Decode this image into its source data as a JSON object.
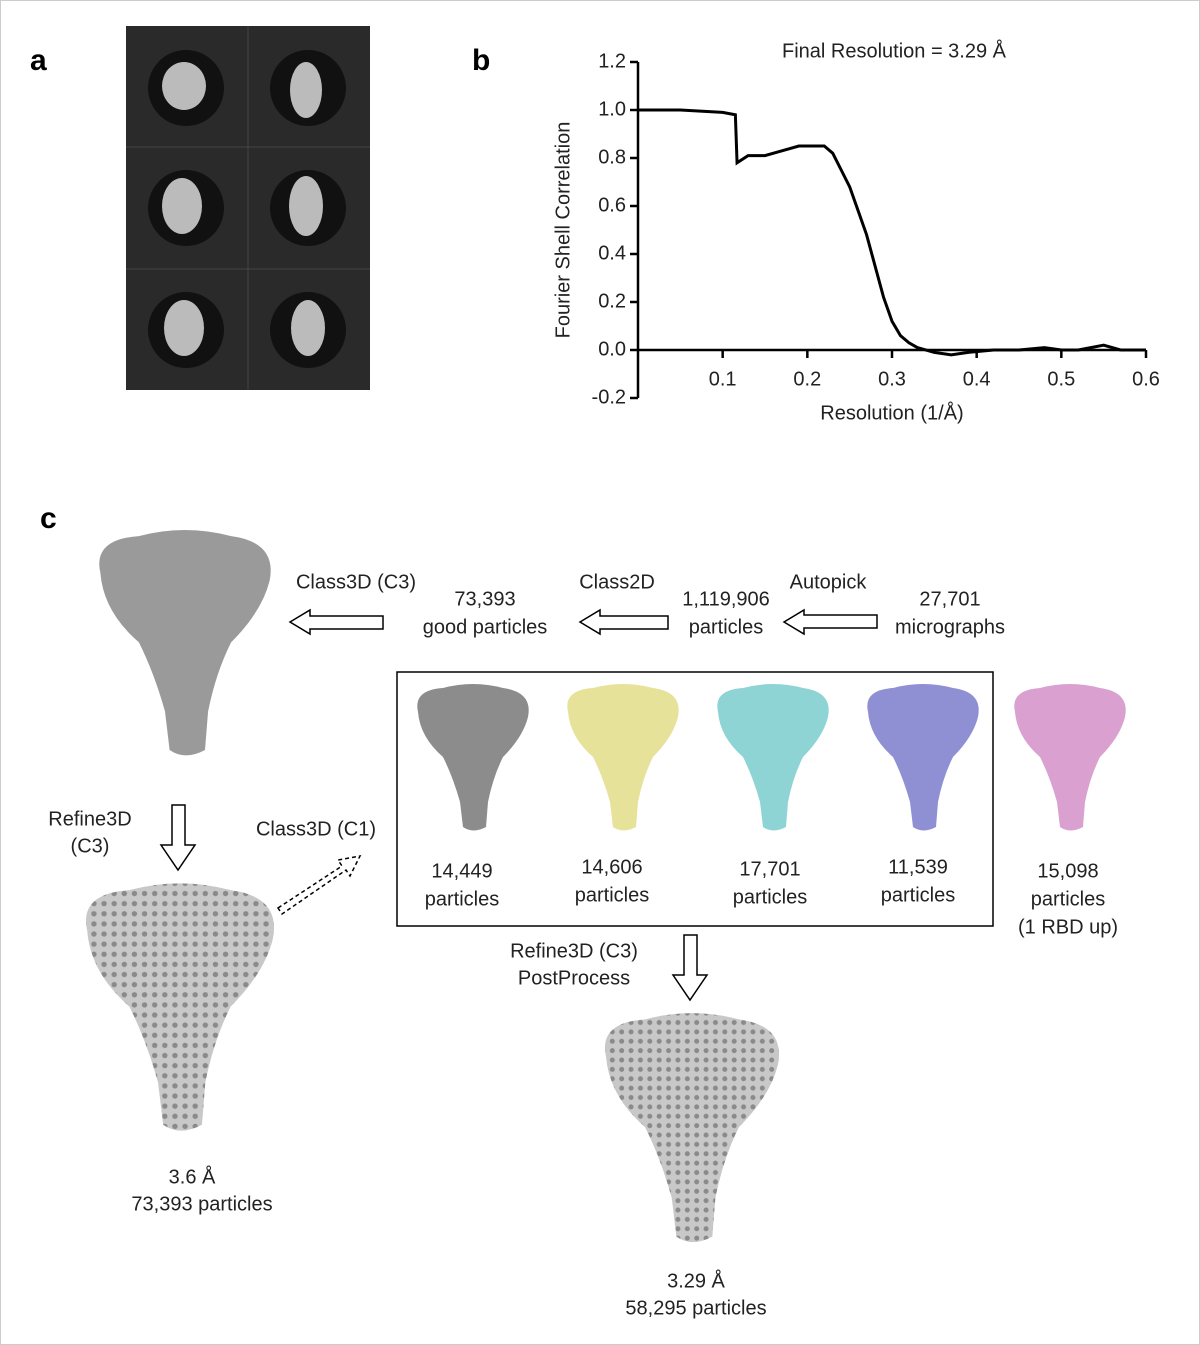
{
  "panel_labels": [
    "a",
    "b",
    "c"
  ],
  "chart_data": {
    "type": "line",
    "title": "Final Resolution = 3.29 Å",
    "x_label": "Resolution (1/Å)",
    "y_label": "Fourier Shell Correlation",
    "x": [
      0,
      0.05,
      0.1,
      0.115,
      0.117,
      0.13,
      0.15,
      0.17,
      0.19,
      0.21,
      0.22,
      0.23,
      0.24,
      0.25,
      0.26,
      0.27,
      0.28,
      0.29,
      0.3,
      0.31,
      0.32,
      0.33,
      0.35,
      0.37,
      0.39,
      0.42,
      0.45,
      0.48,
      0.5,
      0.52,
      0.55,
      0.57,
      0.6
    ],
    "series": [
      {
        "color": "#000000",
        "values": [
          1.0,
          1.0,
          0.99,
          0.98,
          0.78,
          0.81,
          0.81,
          0.83,
          0.85,
          0.85,
          0.85,
          0.82,
          0.75,
          0.68,
          0.58,
          0.48,
          0.35,
          0.22,
          0.12,
          0.06,
          0.03,
          0.01,
          -0.01,
          -0.02,
          -0.01,
          0.0,
          0.0,
          0.01,
          0.0,
          0.0,
          0.02,
          0.0,
          0.0
        ]
      }
    ],
    "xlim": [
      0,
      0.6
    ],
    "ylim": [
      -0.2,
      1.2
    ],
    "xticks": [
      0.1,
      0.2,
      0.3,
      0.4,
      0.5,
      0.6
    ],
    "yticks": [
      -0.2,
      {
        "value": 0,
        "label": "0.0"
      },
      0.2,
      0.4,
      0.6,
      0.8,
      {
        "value": 1,
        "label": "1.0"
      },
      1.2
    ]
  },
  "workflow": {
    "micrographs": [
      "27,701",
      "micrographs"
    ],
    "autopick": "Autopick",
    "picked": [
      "1,119,906",
      "particles"
    ],
    "class2d": "Class2D",
    "good": [
      "73,393",
      "good particles"
    ],
    "class3d_c3": "Class3D (C3)",
    "refine3d": [
      "Refine3D",
      "(C3)"
    ],
    "class3d_c1": "Class3D (C1)",
    "classes": [
      [
        "14,449",
        "particles"
      ],
      [
        "14,606",
        "particles"
      ],
      [
        "17,701",
        "particles"
      ],
      [
        "11,539",
        "particles"
      ],
      [
        "15,098",
        "particles",
        "(1 RBD up)"
      ]
    ],
    "postprocess": [
      "Refine3D (C3)",
      "PostProcess"
    ],
    "map_c3": [
      "3.6 Å",
      "73,393 particles"
    ],
    "final_map": [
      "3.29 Å",
      "58,295 particles"
    ]
  }
}
